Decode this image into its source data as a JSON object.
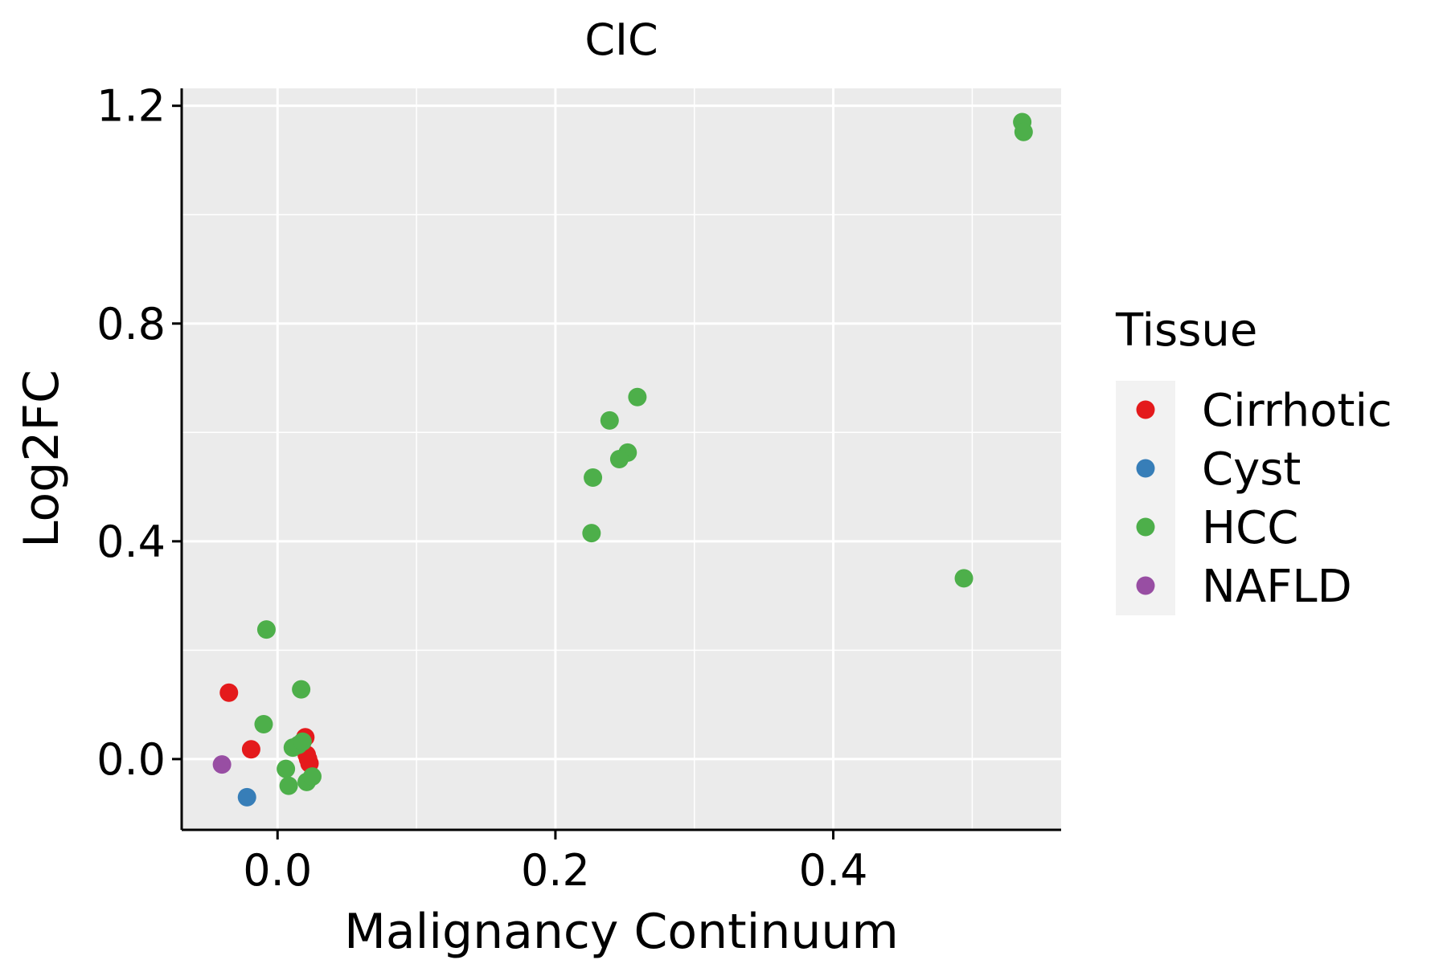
{
  "chart_data": {
    "type": "scatter",
    "title": "CIC",
    "xlabel": "Malignancy Continuum",
    "ylabel": "Log2FC",
    "xlim": [
      -0.069,
      0.564
    ],
    "ylim": [
      -0.13,
      1.232
    ],
    "x_ticks": [
      0.0,
      0.2,
      0.4
    ],
    "x_tick_labels": [
      "0.0",
      "0.2",
      "0.4"
    ],
    "x_minor": [
      0.1,
      0.3,
      0.5
    ],
    "y_ticks": [
      0.0,
      0.4,
      0.8,
      1.2
    ],
    "y_tick_labels": [
      "0.0",
      "0.4",
      "0.8",
      "1.2"
    ],
    "y_minor": [
      0.2,
      0.6,
      1.0
    ],
    "grid": true,
    "legend": {
      "title": "Tissue",
      "position": "right",
      "entries": [
        "Cirrhotic",
        "Cyst",
        "HCC",
        "NAFLD"
      ]
    },
    "colors": {
      "Cirrhotic": "#E41A1C",
      "Cyst": "#377EB8",
      "HCC": "#4DAF4A",
      "NAFLD": "#984EA3",
      "panel": "#EBEBEB",
      "grid": "#FFFFFF"
    },
    "series": [
      {
        "name": "Cirrhotic",
        "points": [
          [
            -0.035,
            0.122
          ],
          [
            -0.019,
            0.018
          ],
          [
            0.02,
            0.04
          ],
          [
            0.021,
            0.008
          ],
          [
            0.022,
            0.0
          ],
          [
            0.023,
            -0.008
          ]
        ]
      },
      {
        "name": "Cyst",
        "points": [
          [
            -0.022,
            -0.07
          ]
        ]
      },
      {
        "name": "HCC",
        "points": [
          [
            0.536,
            1.17
          ],
          [
            0.537,
            1.152
          ],
          [
            0.259,
            0.665
          ],
          [
            0.239,
            0.622
          ],
          [
            0.252,
            0.563
          ],
          [
            0.246,
            0.551
          ],
          [
            0.227,
            0.517
          ],
          [
            0.226,
            0.415
          ],
          [
            0.494,
            0.332
          ],
          [
            -0.008,
            0.238
          ],
          [
            0.017,
            0.128
          ],
          [
            -0.01,
            0.064
          ],
          [
            0.011,
            0.021
          ],
          [
            0.015,
            0.026
          ],
          [
            0.018,
            0.032
          ],
          [
            0.006,
            -0.018
          ],
          [
            0.008,
            -0.049
          ],
          [
            0.021,
            -0.042
          ],
          [
            0.025,
            -0.032
          ]
        ]
      },
      {
        "name": "NAFLD",
        "points": [
          [
            -0.04,
            -0.01
          ]
        ]
      }
    ]
  }
}
